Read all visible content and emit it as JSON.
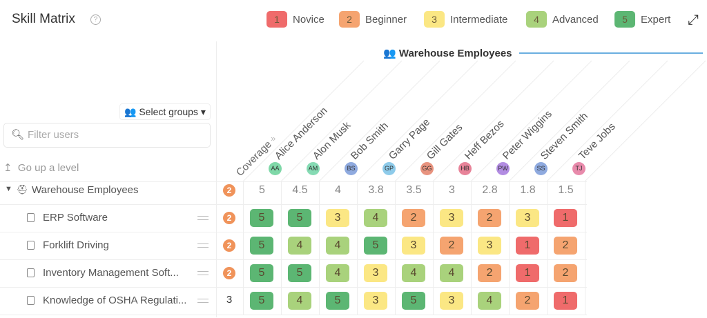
{
  "header": {
    "title": "Skill Matrix",
    "help_icon": "question-circle-icon",
    "expand_icon": "expand-arrows-icon"
  },
  "legend": [
    {
      "level": "1",
      "label": "Novice",
      "color": "#ef6b6b"
    },
    {
      "level": "2",
      "label": "Beginner",
      "color": "#f5a470"
    },
    {
      "level": "3",
      "label": "Intermediate",
      "color": "#fbe784"
    },
    {
      "level": "4",
      "label": "Advanced",
      "color": "#a9d27c"
    },
    {
      "level": "5",
      "label": "Expert",
      "color": "#5cb673"
    }
  ],
  "controls": {
    "select_groups": "Select groups",
    "filter_placeholder": "Filter users",
    "go_up": "Go up a level"
  },
  "group": {
    "name": "Warehouse Employees",
    "coverage": "2",
    "accent": "#6aaee0"
  },
  "coverage_label": "Coverage",
  "employees": [
    {
      "name": "Alice Anderson",
      "initials": "AA",
      "color": "#7fd8a8",
      "average": "5"
    },
    {
      "name": "Alon Musk",
      "initials": "AM",
      "color": "#86dbb4",
      "average": "4.5"
    },
    {
      "name": "Bob Smith",
      "initials": "BS",
      "color": "#8faadf",
      "average": "4"
    },
    {
      "name": "Garry Page",
      "initials": "GP",
      "color": "#8ecbea",
      "average": "3.8"
    },
    {
      "name": "Gill Gates",
      "initials": "GG",
      "color": "#e8937f",
      "average": "3.5"
    },
    {
      "name": "Heff Bezos",
      "initials": "HB",
      "color": "#e88399",
      "average": "3"
    },
    {
      "name": "Peter Wiggins",
      "initials": "PW",
      "color": "#b28ce2",
      "average": "2.8"
    },
    {
      "name": "Steven Smith",
      "initials": "SS",
      "color": "#8faadf",
      "average": "1.8"
    },
    {
      "name": "Teve Jobs",
      "initials": "TJ",
      "color": "#e88aab",
      "average": "1.5"
    }
  ],
  "skills": [
    {
      "name": "ERP Software",
      "coverage": "2",
      "coverage_badge": true,
      "levels": [
        5,
        5,
        3,
        4,
        2,
        3,
        2,
        3,
        1
      ]
    },
    {
      "name": "Forklift Driving",
      "coverage": "2",
      "coverage_badge": true,
      "levels": [
        5,
        4,
        4,
        5,
        3,
        2,
        3,
        1,
        2
      ]
    },
    {
      "name": "Inventory Management Soft...",
      "coverage": "2",
      "coverage_badge": true,
      "levels": [
        5,
        5,
        4,
        3,
        4,
        4,
        2,
        1,
        2
      ]
    },
    {
      "name": "Knowledge of OSHA Regulati...",
      "coverage": "3",
      "coverage_badge": false,
      "levels": [
        5,
        4,
        5,
        3,
        5,
        3,
        4,
        2,
        1
      ]
    }
  ]
}
